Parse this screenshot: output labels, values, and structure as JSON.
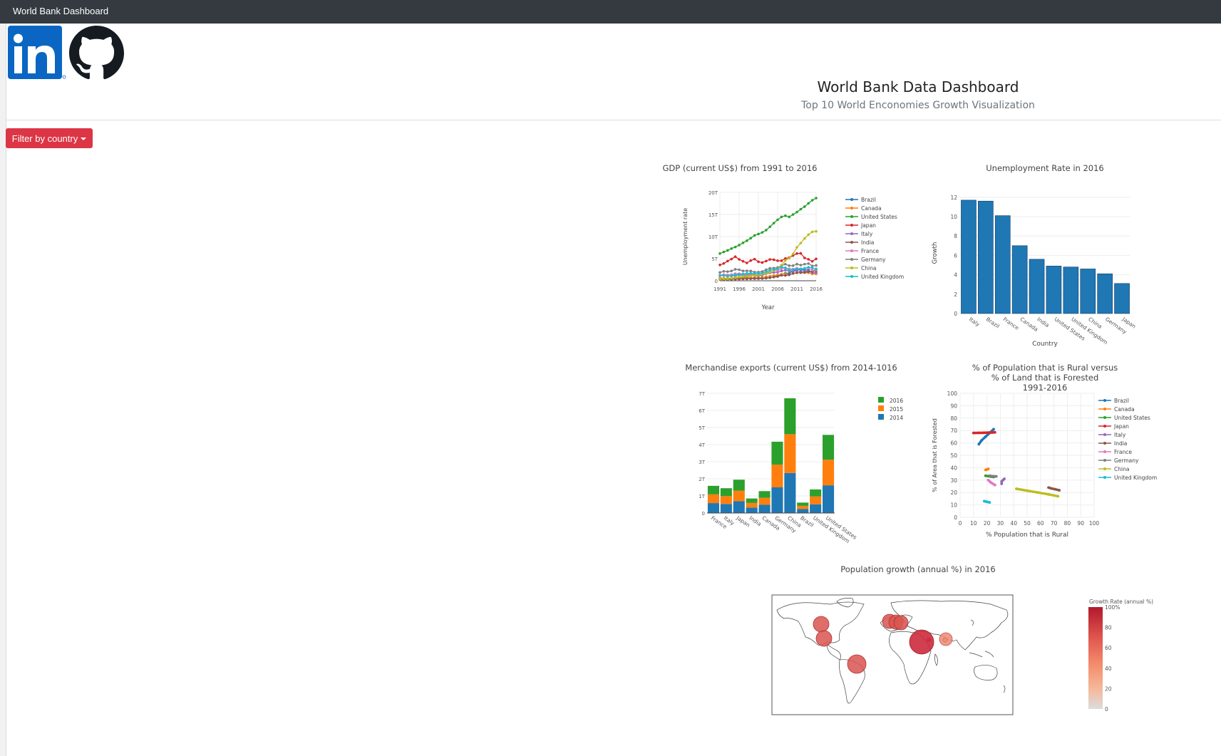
{
  "navbar": {
    "brand": "World Bank Dashboard"
  },
  "logos": {
    "linkedin": "in",
    "github": "github"
  },
  "header": {
    "title": "World Bank Data Dashboard",
    "subtitle": "Top 10 World Enconomies Growth Visualization"
  },
  "filter": {
    "label": "Filter by country"
  },
  "colors": {
    "Brazil": "#1f77b4",
    "Canada": "#ff7f0e",
    "United States": "#2ca02c",
    "Japan": "#d62728",
    "Italy": "#9467bd",
    "India": "#8c564b",
    "France": "#e377c2",
    "Germany": "#7f7f7f",
    "China": "#bcbd22",
    "United Kingdom": "#17becf"
  },
  "chart_data": [
    {
      "id": "gdp",
      "type": "line",
      "title": "GDP (current US$) from 1991 to 2016",
      "xlabel": "Year",
      "ylabel": "Unemployment rate",
      "xlim": [
        1991,
        2016
      ],
      "ylim": [
        0,
        20
      ],
      "xticks": [
        1991,
        1996,
        2001,
        2006,
        2011,
        2016
      ],
      "yticks": [
        {
          "v": 0,
          "l": "0"
        },
        {
          "v": 5,
          "l": "5T"
        },
        {
          "v": 10,
          "l": "10T"
        },
        {
          "v": 15,
          "l": "15T"
        },
        {
          "v": 20,
          "l": "20T"
        }
      ],
      "legend": "right",
      "x": [
        1991,
        1992,
        1993,
        1994,
        1995,
        1996,
        1997,
        1998,
        1999,
        2000,
        2001,
        2002,
        2003,
        2004,
        2005,
        2006,
        2007,
        2008,
        2009,
        2010,
        2011,
        2012,
        2013,
        2014,
        2015,
        2016
      ],
      "series": [
        {
          "name": "Brazil",
          "values": [
            0.41,
            0.39,
            0.44,
            0.56,
            0.77,
            0.85,
            0.88,
            0.86,
            0.6,
            0.66,
            0.56,
            0.51,
            0.56,
            0.67,
            0.89,
            1.11,
            1.4,
            1.7,
            1.67,
            2.21,
            2.62,
            2.47,
            2.47,
            2.46,
            1.8,
            1.8
          ]
        },
        {
          "name": "Canada",
          "values": [
            0.61,
            0.59,
            0.58,
            0.58,
            0.6,
            0.63,
            0.65,
            0.63,
            0.67,
            0.74,
            0.74,
            0.76,
            0.89,
            1.02,
            1.17,
            1.32,
            1.46,
            1.55,
            1.37,
            1.61,
            1.79,
            1.82,
            1.84,
            1.8,
            1.55,
            1.53
          ]
        },
        {
          "name": "United States",
          "values": [
            6.16,
            6.52,
            6.86,
            7.29,
            7.64,
            8.07,
            8.58,
            9.06,
            9.63,
            10.25,
            10.58,
            10.94,
            11.46,
            12.21,
            13.04,
            13.81,
            14.45,
            14.71,
            14.45,
            14.99,
            15.54,
            16.2,
            16.78,
            17.52,
            18.22,
            18.71
          ]
        },
        {
          "name": "Japan",
          "values": [
            3.58,
            3.91,
            4.45,
            4.91,
            5.45,
            4.83,
            4.41,
            4.03,
            4.56,
            4.89,
            4.3,
            4.12,
            4.45,
            4.82,
            4.76,
            4.53,
            4.52,
            5.04,
            5.23,
            5.7,
            6.16,
            6.2,
            5.16,
            4.85,
            4.39,
            4.95
          ]
        },
        {
          "name": "Italy",
          "values": [
            1.25,
            1.32,
            1.06,
            1.1,
            1.17,
            1.31,
            1.24,
            1.27,
            1.25,
            1.14,
            1.16,
            1.27,
            1.57,
            1.8,
            1.85,
            1.94,
            2.2,
            2.39,
            2.19,
            2.13,
            2.28,
            2.07,
            2.14,
            2.16,
            1.83,
            1.86
          ]
        },
        {
          "name": "India",
          "values": [
            0.27,
            0.29,
            0.28,
            0.33,
            0.36,
            0.39,
            0.42,
            0.42,
            0.46,
            0.47,
            0.49,
            0.51,
            0.61,
            0.71,
            0.82,
            0.94,
            1.22,
            1.2,
            1.34,
            1.68,
            1.82,
            1.83,
            1.86,
            2.04,
            2.1,
            2.29
          ]
        },
        {
          "name": "France",
          "values": [
            1.27,
            1.4,
            1.32,
            1.39,
            1.6,
            1.61,
            1.46,
            1.51,
            1.49,
            1.36,
            1.38,
            1.49,
            1.84,
            2.12,
            2.2,
            2.32,
            2.66,
            2.92,
            2.69,
            2.64,
            2.86,
            2.68,
            2.81,
            2.85,
            2.43,
            2.47
          ]
        },
        {
          "name": "Germany",
          "values": [
            1.87,
            2.13,
            2.07,
            2.21,
            2.59,
            2.5,
            2.22,
            2.24,
            2.2,
            1.95,
            1.95,
            2.08,
            2.5,
            2.81,
            2.85,
            3.0,
            3.44,
            3.75,
            3.42,
            3.42,
            3.76,
            3.54,
            3.75,
            3.89,
            3.36,
            3.47
          ]
        },
        {
          "name": "China",
          "values": [
            0.38,
            0.43,
            0.44,
            0.56,
            0.73,
            0.86,
            0.96,
            1.03,
            1.09,
            1.21,
            1.34,
            1.47,
            1.66,
            1.96,
            2.29,
            2.75,
            3.55,
            4.59,
            5.1,
            6.09,
            7.55,
            8.53,
            9.57,
            10.44,
            11.06,
            11.19
          ]
        },
        {
          "name": "United Kingdom",
          "values": [
            1.14,
            1.18,
            1.06,
            1.14,
            1.34,
            1.42,
            1.56,
            1.65,
            1.68,
            1.66,
            1.64,
            1.77,
            2.05,
            2.42,
            2.54,
            2.71,
            3.1,
            2.92,
            2.41,
            2.47,
            2.66,
            2.7,
            2.79,
            3.06,
            2.93,
            2.69
          ]
        }
      ]
    },
    {
      "id": "unemp",
      "type": "bar",
      "title": "Unemployment Rate in 2016",
      "xlabel": "Country",
      "ylabel": "Growth",
      "ylim": [
        0,
        12.5
      ],
      "yticks": [
        0,
        2,
        4,
        6,
        8,
        10,
        12
      ],
      "categories": [
        "Italy",
        "Brazil",
        "France",
        "Canada",
        "India",
        "United States",
        "United Kingdom",
        "China",
        "Germany",
        "Japan"
      ],
      "values": [
        11.7,
        11.6,
        10.1,
        7.0,
        5.6,
        4.9,
        4.8,
        4.6,
        4.1,
        3.1
      ]
    },
    {
      "id": "exports",
      "type": "bar",
      "title": "Merchandise exports (current US$) from 2014-1016",
      "ylim": [
        0,
        7
      ],
      "yticks": [
        {
          "v": 0,
          "l": "0"
        },
        {
          "v": 1,
          "l": "1T"
        },
        {
          "v": 2,
          "l": "2T"
        },
        {
          "v": 3,
          "l": "3T"
        },
        {
          "v": 4,
          "l": "4T"
        },
        {
          "v": 5,
          "l": "5T"
        },
        {
          "v": 6,
          "l": "6T"
        },
        {
          "v": 7,
          "l": "7T"
        }
      ],
      "legend": "top-right",
      "categories": [
        "France",
        "Italy",
        "Japan",
        "India",
        "Canada",
        "Germany",
        "China",
        "Brazil",
        "United Kingdom",
        "United States"
      ],
      "series": [
        {
          "name": "2014",
          "color": "#1f77b4",
          "values": [
            0.58,
            0.53,
            0.69,
            0.32,
            0.48,
            1.5,
            2.34,
            0.23,
            0.51,
            1.62
          ]
        },
        {
          "name": "2015",
          "color": "#ff7f0e",
          "values": [
            0.51,
            0.46,
            0.62,
            0.27,
            0.41,
            1.33,
            2.27,
            0.19,
            0.46,
            1.5
          ]
        },
        {
          "name": "2016",
          "color": "#2ca02c",
          "values": [
            0.5,
            0.46,
            0.64,
            0.26,
            0.39,
            1.34,
            2.1,
            0.19,
            0.41,
            1.45
          ]
        }
      ]
    },
    {
      "id": "rural",
      "type": "scatter",
      "title": "% of Population that is Rural versus",
      "title2": "% of Land that is Forested",
      "title3": "1991-2016",
      "xlabel": "% Population that is Rural",
      "ylabel": "% of Area that is Forested",
      "xlim": [
        0,
        100
      ],
      "ylim": [
        0,
        100
      ],
      "xticks": [
        0,
        10,
        20,
        30,
        40,
        50,
        60,
        70,
        80,
        90,
        100
      ],
      "yticks": [
        0,
        10,
        20,
        30,
        40,
        50,
        60,
        70,
        80,
        90,
        100
      ],
      "legend": "right",
      "series": [
        {
          "name": "Brazil",
          "x": [
            25,
            22,
            19,
            16,
            14
          ],
          "y": [
            71,
            68,
            65,
            62,
            59
          ]
        },
        {
          "name": "Canada",
          "x": [
            21,
            20,
            19
          ],
          "y": [
            39,
            38.6,
            38.2
          ]
        },
        {
          "name": "United States",
          "x": [
            25,
            23,
            21,
            19
          ],
          "y": [
            32.5,
            32.8,
            33.2,
            33.5
          ]
        },
        {
          "name": "Japan",
          "x": [
            10,
            14,
            18,
            21,
            24,
            26
          ],
          "y": [
            68,
            68.1,
            68.2,
            68.3,
            68.4,
            68.5
          ]
        },
        {
          "name": "Italy",
          "x": [
            33,
            32,
            31,
            31
          ],
          "y": [
            31,
            30,
            29,
            27
          ]
        },
        {
          "name": "India",
          "x": [
            74,
            71,
            68,
            66
          ],
          "y": [
            21.8,
            22.6,
            23.3,
            24
          ]
        },
        {
          "name": "France",
          "x": [
            26,
            23,
            21
          ],
          "y": [
            26,
            28,
            30
          ]
        },
        {
          "name": "Germany",
          "x": [
            27,
            25,
            23,
            22
          ],
          "y": [
            33,
            33.1,
            33.3,
            33.5
          ]
        },
        {
          "name": "China",
          "x": [
            73,
            66,
            58,
            50,
            42
          ],
          "y": [
            17,
            18.5,
            20,
            21.5,
            23
          ]
        },
        {
          "name": "United Kingdom",
          "x": [
            22,
            20,
            18
          ],
          "y": [
            12,
            12.5,
            13
          ]
        }
      ]
    },
    {
      "id": "popgrowth",
      "type": "map",
      "title": "Population growth (annual %) in 2016",
      "colorbar_title": "Growth Rate (annual %)",
      "colorbar_ticks": [
        {
          "v": 0,
          "l": "0"
        },
        {
          "v": 20,
          "l": "20"
        },
        {
          "v": 40,
          "l": "40"
        },
        {
          "v": 60,
          "l": "60"
        },
        {
          "v": 80,
          "l": "80"
        },
        {
          "v": 100,
          "l": "100%"
        }
      ]
    }
  ]
}
